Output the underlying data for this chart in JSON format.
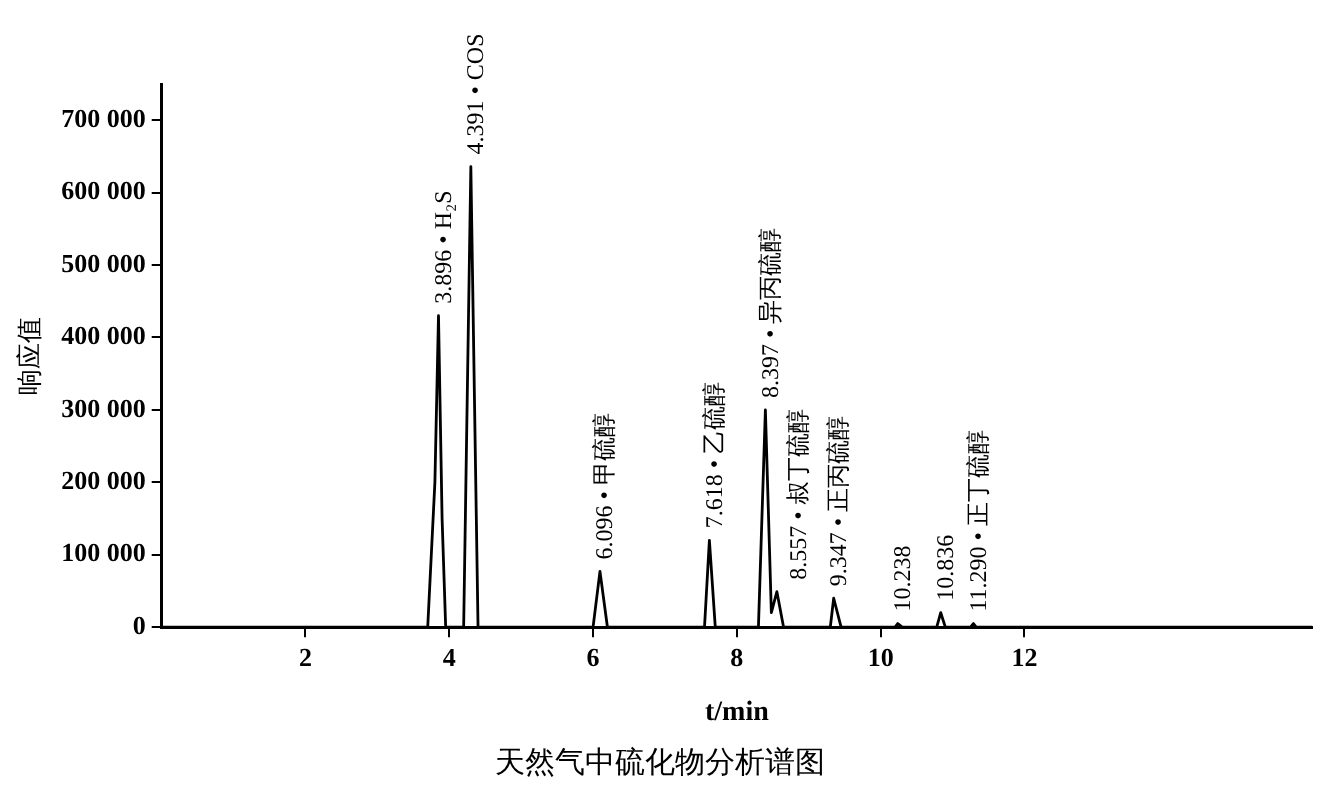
{
  "chart_data": {
    "type": "line",
    "title": "天然气中硫化物分析谱图",
    "xlabel": "t/min",
    "ylabel": "响应值",
    "xlim": [
      0,
      16
    ],
    "xticks": [
      2,
      4,
      6,
      8,
      10,
      12
    ],
    "ylim": [
      0,
      750000
    ],
    "yticks": [
      {
        "value": 0,
        "label": "0"
      },
      {
        "value": 100000,
        "label": "100 000"
      },
      {
        "value": 200000,
        "label": "200 000"
      },
      {
        "value": 300000,
        "label": "300 000"
      },
      {
        "value": 400000,
        "label": "400 000"
      },
      {
        "value": 500000,
        "label": "500 000"
      },
      {
        "value": 600000,
        "label": "600 000"
      },
      {
        "value": 700000,
        "label": "700 000"
      }
    ],
    "grid": false,
    "legend": false,
    "marker": "none",
    "line_style": "solid",
    "series": [
      {
        "color": "#000000",
        "x": [
          0,
          3.7,
          3.8,
          3.85,
          3.9,
          3.95,
          4.2,
          4.3,
          4.4,
          6.0,
          6.096,
          6.2,
          7.55,
          7.618,
          7.7,
          8.3,
          8.397,
          8.48,
          8.557,
          8.65,
          9.3,
          9.347,
          9.45,
          10.2,
          10.238,
          10.3,
          10.78,
          10.836,
          10.9,
          11.25,
          11.29,
          11.33,
          16
        ],
        "values": [
          0,
          0,
          200000,
          430000,
          150000,
          0,
          0,
          636000,
          0,
          0,
          77000,
          0,
          0,
          120000,
          0,
          0,
          300000,
          20000,
          49000,
          0,
          0,
          40000,
          0,
          0,
          5000,
          0,
          0,
          20000,
          0,
          0,
          5000,
          0,
          0
        ]
      }
    ],
    "annotations": [
      {
        "text": "3.896 • H₂S",
        "x": 3.85,
        "y": 430000
      },
      {
        "text": "4.391 • COS",
        "x": 4.3,
        "y": 636000
      },
      {
        "text": "6.096 • 甲硫醇",
        "x": 6.096,
        "y": 77000
      },
      {
        "text": "7.618 • 乙硫醇",
        "x": 7.618,
        "y": 120000
      },
      {
        "text": "8.397 • 异丙硫醇",
        "x": 8.397,
        "y": 300000
      },
      {
        "text": "8.557 • 叔丁硫醇",
        "x": 8.557,
        "y": 49000
      },
      {
        "text": "9.347 • 正丙硫醇",
        "x": 9.347,
        "y": 40000
      },
      {
        "text": "10.238",
        "x": 10.238,
        "y": 5000
      },
      {
        "text": "10.836",
        "x": 10.836,
        "y": 20000
      },
      {
        "text": "11.290 • 正丁硫醇",
        "x": 11.29,
        "y": 5000
      }
    ]
  }
}
